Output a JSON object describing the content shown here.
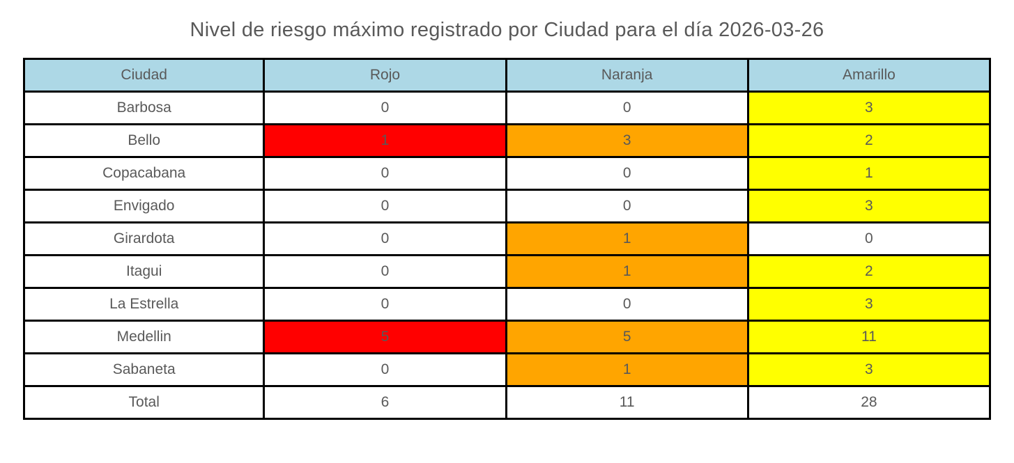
{
  "title": "Nivel de riesgo máximo registrado por Ciudad para el día 2026-03-26",
  "colors": {
    "header": "#ADD8E6",
    "white": "#FFFFFF",
    "red": "#FF0000",
    "orange": "#FFA500",
    "yellow": "#FFFF00",
    "text": "#595959",
    "border": "#000000"
  },
  "table": {
    "headers": [
      "Ciudad",
      "Rojo",
      "Naranja",
      "Amarillo"
    ],
    "rows": [
      {
        "label": "Barbosa",
        "cells": [
          {
            "v": "0",
            "bg": "white"
          },
          {
            "v": "0",
            "bg": "white"
          },
          {
            "v": "3",
            "bg": "yellow"
          }
        ]
      },
      {
        "label": "Bello",
        "cells": [
          {
            "v": "1",
            "bg": "red"
          },
          {
            "v": "3",
            "bg": "orange"
          },
          {
            "v": "2",
            "bg": "yellow"
          }
        ]
      },
      {
        "label": "Copacabana",
        "cells": [
          {
            "v": "0",
            "bg": "white"
          },
          {
            "v": "0",
            "bg": "white"
          },
          {
            "v": "1",
            "bg": "yellow"
          }
        ]
      },
      {
        "label": "Envigado",
        "cells": [
          {
            "v": "0",
            "bg": "white"
          },
          {
            "v": "0",
            "bg": "white"
          },
          {
            "v": "3",
            "bg": "yellow"
          }
        ]
      },
      {
        "label": "Girardota",
        "cells": [
          {
            "v": "0",
            "bg": "white"
          },
          {
            "v": "1",
            "bg": "orange"
          },
          {
            "v": "0",
            "bg": "white"
          }
        ]
      },
      {
        "label": "Itagui",
        "cells": [
          {
            "v": "0",
            "bg": "white"
          },
          {
            "v": "1",
            "bg": "orange"
          },
          {
            "v": "2",
            "bg": "yellow"
          }
        ]
      },
      {
        "label": "La Estrella",
        "cells": [
          {
            "v": "0",
            "bg": "white"
          },
          {
            "v": "0",
            "bg": "white"
          },
          {
            "v": "3",
            "bg": "yellow"
          }
        ]
      },
      {
        "label": "Medellin",
        "cells": [
          {
            "v": "5",
            "bg": "red"
          },
          {
            "v": "5",
            "bg": "orange"
          },
          {
            "v": "11",
            "bg": "yellow"
          }
        ]
      },
      {
        "label": "Sabaneta",
        "cells": [
          {
            "v": "0",
            "bg": "white"
          },
          {
            "v": "1",
            "bg": "orange"
          },
          {
            "v": "3",
            "bg": "yellow"
          }
        ]
      },
      {
        "label": "Total",
        "cells": [
          {
            "v": "6",
            "bg": "white"
          },
          {
            "v": "11",
            "bg": "white"
          },
          {
            "v": "28",
            "bg": "white"
          }
        ]
      }
    ]
  },
  "chart_data": {
    "type": "table",
    "title": "Nivel de riesgo máximo registrado por Ciudad para el día 2026-03-26",
    "columns": [
      "Ciudad",
      "Rojo",
      "Naranja",
      "Amarillo"
    ],
    "rows": [
      [
        "Barbosa",
        0,
        0,
        3
      ],
      [
        "Bello",
        1,
        3,
        2
      ],
      [
        "Copacabana",
        0,
        0,
        1
      ],
      [
        "Envigado",
        0,
        0,
        3
      ],
      [
        "Girardota",
        0,
        1,
        0
      ],
      [
        "Itagui",
        0,
        1,
        2
      ],
      [
        "La Estrella",
        0,
        0,
        3
      ],
      [
        "Medellin",
        5,
        5,
        11
      ],
      [
        "Sabaneta",
        0,
        1,
        3
      ],
      [
        "Total",
        6,
        11,
        28
      ]
    ],
    "cell_highlight_rule": "non-zero values: Rojo column red, Naranja column orange, Amarillo column yellow; Total row uncolored",
    "header_bg": "#ADD8E6"
  }
}
